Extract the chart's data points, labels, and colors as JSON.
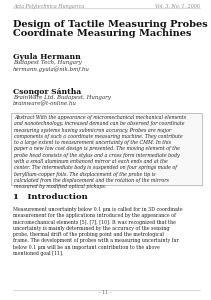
{
  "bg_color": "#ffffff",
  "header_left": "Acta Polytechnica Hungarica",
  "header_right": "Vol. 3, No. 1, 2006",
  "title_line1": "Design of Tactile Measuring Probes for",
  "title_line2": "Coordinate Measuring Machines",
  "author1_name": "Gyula Hermann",
  "author1_affil1": "Budapest Tech, Hungary",
  "author1_affil2": "hermann.gyula@nik.bmf.hu",
  "author2_name": "Csongor Sántha",
  "author2_affil1": "BrainWare Ltd, Budapest, Hungary",
  "author2_affil2": "brainware@t-online.hu",
  "abstract_label": "Abstract",
  "abstract_text": "With the appearance of micromechanical mechanical elements and nanotechnology, increased demand can be observed for coordinate measuring systems having submicron accuracy. Probes are major components of such a coordinate measuring machine. They contribute to a large extent to measurement uncertainty of the CMM. In this paper a new low cost design is presented. The moving element of the probe head consists of the stylus and a cross form intermediate body with a small aluminum enhanced mirror at each ends and at the center. The intermediate body is suspended on four springs made of beryllium-copper foils. The displacement of the probe tip is calculated from the displacement and the rotation of the mirrors measured by modified optical pickups.",
  "section_label": "1",
  "section_title": "Introduction",
  "intro_text": "Measurement uncertainty below 0.1 μm is called for in 3D coordinate measurement for the applications introduced by the appearance of micromechanical elements [5], [7], [10]. It was recognized that the uncertainty is mainly determined by the accuracy of the sensing probe, thermal drift of the probing point and the metrological frame. The development of probes with a measuring uncertainty far below 0.1 μm will be an important contribution to the above mentioned goal [11].",
  "footer_text": "- 11 -",
  "header_fontsize": 3.5,
  "title_fontsize": 7.0,
  "author_name_fontsize": 5.5,
  "author_affil_fontsize": 4.0,
  "abstract_fontsize": 3.4,
  "section_fontsize": 6.0,
  "body_fontsize": 3.4,
  "footer_fontsize": 3.5
}
